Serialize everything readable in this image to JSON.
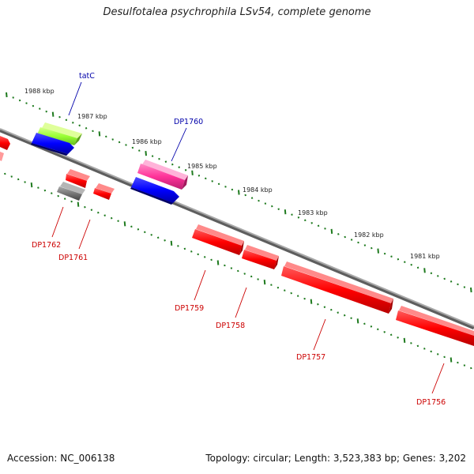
{
  "title": "Desulfotalea psychrophila LSv54, complete genome",
  "footer": {
    "accession": "Accession: NC_006138",
    "topology": "Topology: circular; Length: 3,523,383 bp; Genes: 3,202"
  },
  "colors": {
    "forward_label": "#0000aa",
    "reverse_label": "#cc0000",
    "tick": "#1e7a1e",
    "backbone": "#8a8a8a",
    "gene_red": "#ff0000",
    "gene_blue": "#0000ff",
    "gene_green": "#99ff33",
    "gene_pink": "#ff3399",
    "gene_gray": "#777777"
  },
  "scale": {
    "ticks_kbp": [
      "1988 kbp",
      "1987 kbp",
      "1986 kbp",
      "1985 kbp",
      "1984 kbp",
      "1983 kbp",
      "1982 kbp",
      "1981 kbp"
    ]
  },
  "gene_labels": {
    "forward": [
      "tatC",
      "DP1760"
    ],
    "reverse": [
      "DP1762",
      "DP1761",
      "DP1759",
      "DP1758",
      "DP1757",
      "DP1756"
    ]
  }
}
